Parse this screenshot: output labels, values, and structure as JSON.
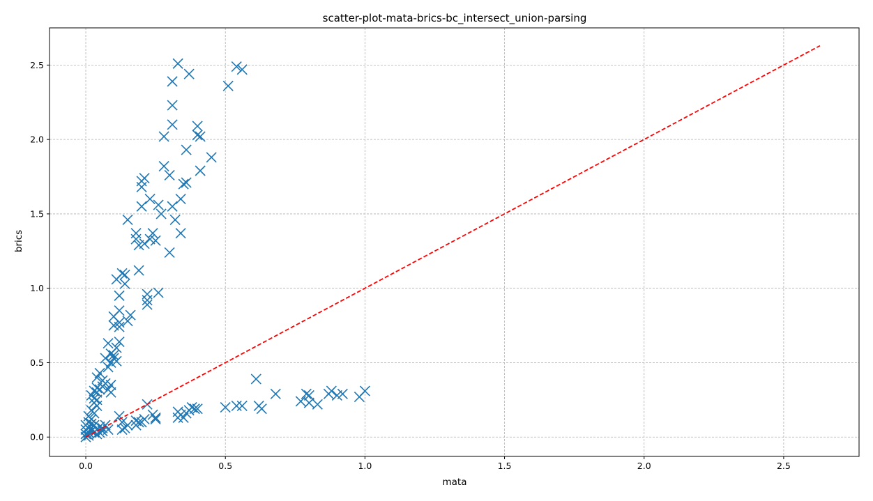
{
  "chart_data": {
    "type": "scatter",
    "title": "scatter-plot-mata-brics-bc_intersect_union-parsing",
    "xlabel": "mata",
    "ylabel": "brics",
    "xlim": [
      -0.13,
      2.77
    ],
    "ylim": [
      -0.13,
      2.75
    ],
    "xticks": [
      0.0,
      0.5,
      1.0,
      1.5,
      2.0,
      2.5
    ],
    "xtick_labels": [
      "0.0",
      "0.5",
      "1.0",
      "1.5",
      "2.0",
      "2.5"
    ],
    "yticks": [
      0.0,
      0.5,
      1.0,
      1.5,
      2.0,
      2.5
    ],
    "ytick_labels": [
      "0.0",
      "0.5",
      "1.0",
      "1.5",
      "2.0",
      "2.5"
    ],
    "grid": true,
    "marker": "x",
    "point_color": "#1f77b4",
    "reference_line": {
      "x": [
        0,
        2.63
      ],
      "y": [
        0,
        2.63
      ],
      "color": "#ff0000",
      "style": "dashed"
    },
    "points": [
      [
        0.33,
        2.51
      ],
      [
        0.54,
        2.49
      ],
      [
        0.56,
        2.47
      ],
      [
        0.37,
        2.44
      ],
      [
        0.31,
        2.39
      ],
      [
        0.51,
        2.36
      ],
      [
        0.31,
        2.23
      ],
      [
        0.31,
        2.1
      ],
      [
        0.4,
        2.09
      ],
      [
        0.4,
        2.03
      ],
      [
        0.41,
        2.02
      ],
      [
        0.28,
        2.02
      ],
      [
        0.36,
        1.93
      ],
      [
        0.45,
        1.88
      ],
      [
        0.28,
        1.82
      ],
      [
        0.41,
        1.79
      ],
      [
        0.3,
        1.76
      ],
      [
        0.21,
        1.74
      ],
      [
        0.2,
        1.72
      ],
      [
        0.36,
        1.71
      ],
      [
        0.35,
        1.7
      ],
      [
        0.2,
        1.68
      ],
      [
        0.34,
        1.6
      ],
      [
        0.23,
        1.6
      ],
      [
        0.31,
        1.55
      ],
      [
        0.26,
        1.56
      ],
      [
        0.2,
        1.55
      ],
      [
        0.27,
        1.5
      ],
      [
        0.32,
        1.46
      ],
      [
        0.15,
        1.46
      ],
      [
        0.18,
        1.37
      ],
      [
        0.34,
        1.37
      ],
      [
        0.24,
        1.37
      ],
      [
        0.23,
        1.33
      ],
      [
        0.18,
        1.33
      ],
      [
        0.25,
        1.32
      ],
      [
        0.21,
        1.3
      ],
      [
        0.19,
        1.29
      ],
      [
        0.3,
        1.24
      ],
      [
        0.19,
        1.12
      ],
      [
        0.13,
        1.1
      ],
      [
        0.14,
        1.09
      ],
      [
        0.11,
        1.06
      ],
      [
        0.14,
        1.03
      ],
      [
        0.26,
        0.97
      ],
      [
        0.22,
        0.96
      ],
      [
        0.12,
        0.95
      ],
      [
        0.22,
        0.92
      ],
      [
        0.22,
        0.89
      ],
      [
        0.12,
        0.85
      ],
      [
        0.16,
        0.82
      ],
      [
        0.1,
        0.81
      ],
      [
        0.15,
        0.78
      ],
      [
        0.12,
        0.77
      ],
      [
        0.1,
        0.75
      ],
      [
        0.12,
        0.74
      ],
      [
        0.12,
        0.64
      ],
      [
        0.08,
        0.63
      ],
      [
        0.11,
        0.6
      ],
      [
        0.09,
        0.56
      ],
      [
        0.1,
        0.55
      ],
      [
        0.1,
        0.53
      ],
      [
        0.07,
        0.53
      ],
      [
        0.11,
        0.51
      ],
      [
        0.09,
        0.5
      ],
      [
        0.08,
        0.47
      ],
      [
        0.05,
        0.43
      ],
      [
        0.04,
        0.4
      ],
      [
        0.06,
        0.38
      ],
      [
        0.09,
        0.35
      ],
      [
        0.07,
        0.36
      ],
      [
        0.06,
        0.34
      ],
      [
        0.04,
        0.33
      ],
      [
        0.08,
        0.32
      ],
      [
        0.05,
        0.32
      ],
      [
        0.03,
        0.31
      ],
      [
        0.04,
        0.3
      ],
      [
        0.09,
        0.3
      ],
      [
        0.02,
        0.28
      ],
      [
        0.03,
        0.26
      ],
      [
        0.04,
        0.25
      ],
      [
        0.03,
        0.23
      ],
      [
        0.04,
        0.21
      ],
      [
        0.02,
        0.18
      ],
      [
        0.03,
        0.16
      ],
      [
        0.01,
        0.14
      ],
      [
        0.02,
        0.12
      ],
      [
        0.01,
        0.1
      ],
      [
        0.02,
        0.09
      ],
      [
        0.0,
        0.08
      ],
      [
        0.01,
        0.06
      ],
      [
        0.0,
        0.05
      ],
      [
        0.02,
        0.04
      ],
      [
        0.0,
        0.02
      ],
      [
        0.01,
        0.01
      ],
      [
        0.03,
        0.03
      ],
      [
        0.04,
        0.05
      ],
      [
        0.05,
        0.07
      ],
      [
        0.06,
        0.06
      ],
      [
        0.05,
        0.03
      ],
      [
        0.08,
        0.05
      ],
      [
        0.07,
        0.08
      ],
      [
        0.03,
        0.08
      ],
      [
        0.01,
        0.03
      ],
      [
        0.02,
        0.06
      ],
      [
        0.0,
        0.0
      ],
      [
        0.04,
        0.02
      ],
      [
        0.06,
        0.04
      ],
      [
        0.12,
        0.14
      ],
      [
        0.13,
        0.1
      ],
      [
        0.14,
        0.06
      ],
      [
        0.15,
        0.08
      ],
      [
        0.13,
        0.05
      ],
      [
        0.18,
        0.11
      ],
      [
        0.18,
        0.08
      ],
      [
        0.19,
        0.1
      ],
      [
        0.2,
        0.1
      ],
      [
        0.21,
        0.12
      ],
      [
        0.22,
        0.22
      ],
      [
        0.24,
        0.15
      ],
      [
        0.25,
        0.13
      ],
      [
        0.25,
        0.12
      ],
      [
        0.33,
        0.17
      ],
      [
        0.34,
        0.15
      ],
      [
        0.33,
        0.13
      ],
      [
        0.35,
        0.13
      ],
      [
        0.36,
        0.16
      ],
      [
        0.37,
        0.18
      ],
      [
        0.38,
        0.2
      ],
      [
        0.39,
        0.19
      ],
      [
        0.4,
        0.19
      ],
      [
        0.5,
        0.2
      ],
      [
        0.54,
        0.21
      ],
      [
        0.56,
        0.21
      ],
      [
        0.61,
        0.39
      ],
      [
        0.62,
        0.21
      ],
      [
        0.63,
        0.19
      ],
      [
        0.68,
        0.29
      ],
      [
        0.77,
        0.24
      ],
      [
        0.79,
        0.29
      ],
      [
        0.8,
        0.28
      ],
      [
        0.8,
        0.23
      ],
      [
        0.83,
        0.22
      ],
      [
        0.87,
        0.29
      ],
      [
        0.88,
        0.31
      ],
      [
        0.9,
        0.28
      ],
      [
        0.92,
        0.29
      ],
      [
        0.98,
        0.27
      ],
      [
        1.0,
        0.31
      ]
    ]
  }
}
